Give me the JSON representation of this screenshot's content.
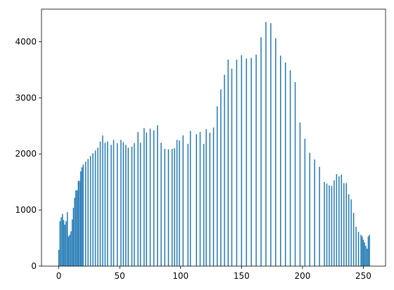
{
  "chart_data": {
    "type": "bar",
    "title": "",
    "xlabel": "",
    "ylabel": "",
    "xlim": [
      -14.2,
      268.2
    ],
    "ylim": [
      0,
      4580
    ],
    "grid": false,
    "bar_color": "#1f77b4",
    "x_ticks": [
      0,
      50,
      100,
      150,
      200,
      250
    ],
    "x_tick_labels": [
      "0",
      "50",
      "100",
      "150",
      "200",
      "250"
    ],
    "y_ticks": [
      0,
      1000,
      2000,
      3000,
      4000
    ],
    "y_tick_labels": [
      "0",
      "1000",
      "2000",
      "3000",
      "4000"
    ],
    "x": [
      0,
      1,
      2,
      3,
      4,
      5,
      6,
      7,
      8,
      9,
      10,
      11,
      12,
      13,
      14,
      15,
      16,
      17,
      18,
      19,
      20,
      22,
      24,
      26,
      28,
      30,
      32,
      34,
      36,
      38,
      40,
      43,
      45,
      48,
      51,
      53,
      55,
      57,
      60,
      62,
      65,
      67,
      70,
      72,
      75,
      78,
      81,
      84,
      87,
      90,
      93,
      95,
      97,
      99,
      102,
      106,
      108,
      113,
      116,
      119,
      121,
      124,
      127,
      130,
      133,
      136,
      139,
      142,
      146,
      150,
      154,
      158,
      162,
      166,
      170,
      174,
      178,
      182,
      186,
      190,
      194,
      198,
      202,
      206,
      210,
      214,
      218,
      220,
      222,
      224,
      226,
      228,
      230,
      232,
      234,
      236,
      238,
      240,
      242,
      244,
      246,
      248,
      249,
      250,
      251,
      252,
      253,
      254,
      255
    ],
    "y": [
      290,
      800,
      870,
      930,
      820,
      740,
      800,
      960,
      530,
      560,
      620,
      830,
      1040,
      1220,
      1350,
      1350,
      1520,
      1520,
      1690,
      1760,
      1810,
      1860,
      1910,
      1960,
      2010,
      2060,
      2110,
      2220,
      2330,
      2200,
      2220,
      2160,
      2250,
      2190,
      2250,
      2210,
      2160,
      2110,
      2130,
      2190,
      2390,
      2200,
      2460,
      2380,
      2450,
      2420,
      2510,
      2200,
      2090,
      2080,
      2090,
      2100,
      2250,
      2240,
      2330,
      2180,
      2410,
      2350,
      2390,
      2180,
      2440,
      2380,
      2470,
      2850,
      3150,
      3410,
      3680,
      3520,
      3680,
      3760,
      3700,
      3710,
      3770,
      4080,
      4350,
      4330,
      4060,
      3750,
      3630,
      3490,
      3280,
      2560,
      2270,
      2020,
      1900,
      1770,
      1500,
      1470,
      1440,
      1430,
      1530,
      1640,
      1600,
      1630,
      1480,
      1480,
      1280,
      1190,
      950,
      700,
      610,
      560,
      530,
      470,
      420,
      360,
      310,
      530,
      560
    ]
  }
}
